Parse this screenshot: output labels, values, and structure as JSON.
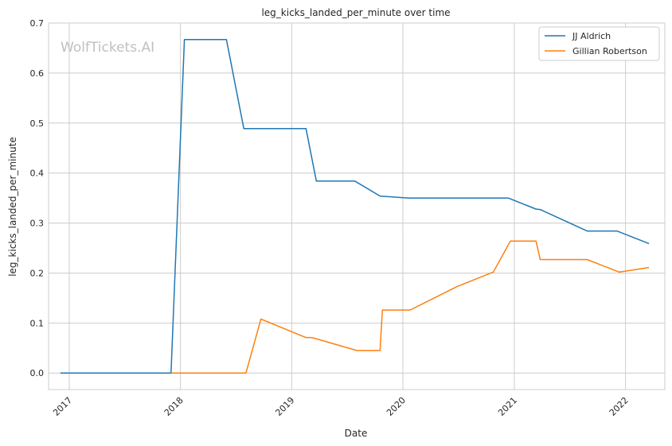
{
  "chart_data": {
    "type": "line",
    "title": "leg_kicks_landed_per_minute over time",
    "xlabel": "Date",
    "ylabel": "leg_kicks_landed_per_minute",
    "watermark": "WolfTickets.AI",
    "grid": true,
    "legend_position": "top-right",
    "xlim": [
      "2016-10-25",
      "2022-05-10"
    ],
    "ylim": [
      -0.033,
      0.7
    ],
    "x_ticks": [
      "2017",
      "2018",
      "2019",
      "2020",
      "2021",
      "2022"
    ],
    "y_ticks": [
      "0.0",
      "0.1",
      "0.2",
      "0.3",
      "0.4",
      "0.5",
      "0.6",
      "0.7"
    ],
    "series": [
      {
        "name": "JJ Aldrich",
        "color": "#1f77b4",
        "points": [
          [
            "2016-12-03",
            0.0
          ],
          [
            "2017-12-01",
            0.0
          ],
          [
            "2018-01-14",
            0.667
          ],
          [
            "2018-06-01",
            0.667
          ],
          [
            "2018-07-28",
            0.489
          ],
          [
            "2019-02-17",
            0.489
          ],
          [
            "2019-03-23",
            0.384
          ],
          [
            "2019-07-27",
            0.384
          ],
          [
            "2019-10-18",
            0.354
          ],
          [
            "2020-01-18",
            0.35
          ],
          [
            "2020-12-12",
            0.35
          ],
          [
            "2021-03-13",
            0.328
          ],
          [
            "2021-03-27",
            0.327
          ],
          [
            "2021-08-28",
            0.284
          ],
          [
            "2021-12-04",
            0.284
          ],
          [
            "2022-03-19",
            0.259
          ]
        ]
      },
      {
        "name": "Gillian Robertson",
        "color": "#ff7f0e",
        "points": [
          [
            "2017-12-01",
            0.0
          ],
          [
            "2018-08-04",
            0.0
          ],
          [
            "2018-09-22",
            0.108
          ],
          [
            "2019-02-17",
            0.071
          ],
          [
            "2019-03-09",
            0.071
          ],
          [
            "2019-08-03",
            0.045
          ],
          [
            "2019-10-18",
            0.045
          ],
          [
            "2019-10-26",
            0.126
          ],
          [
            "2020-01-25",
            0.126
          ],
          [
            "2020-06-27",
            0.173
          ],
          [
            "2020-10-24",
            0.202
          ],
          [
            "2020-12-19",
            0.264
          ],
          [
            "2021-03-13",
            0.264
          ],
          [
            "2021-03-27",
            0.227
          ],
          [
            "2021-08-28",
            0.227
          ],
          [
            "2021-12-11",
            0.202
          ],
          [
            "2022-03-19",
            0.211
          ]
        ]
      }
    ]
  }
}
